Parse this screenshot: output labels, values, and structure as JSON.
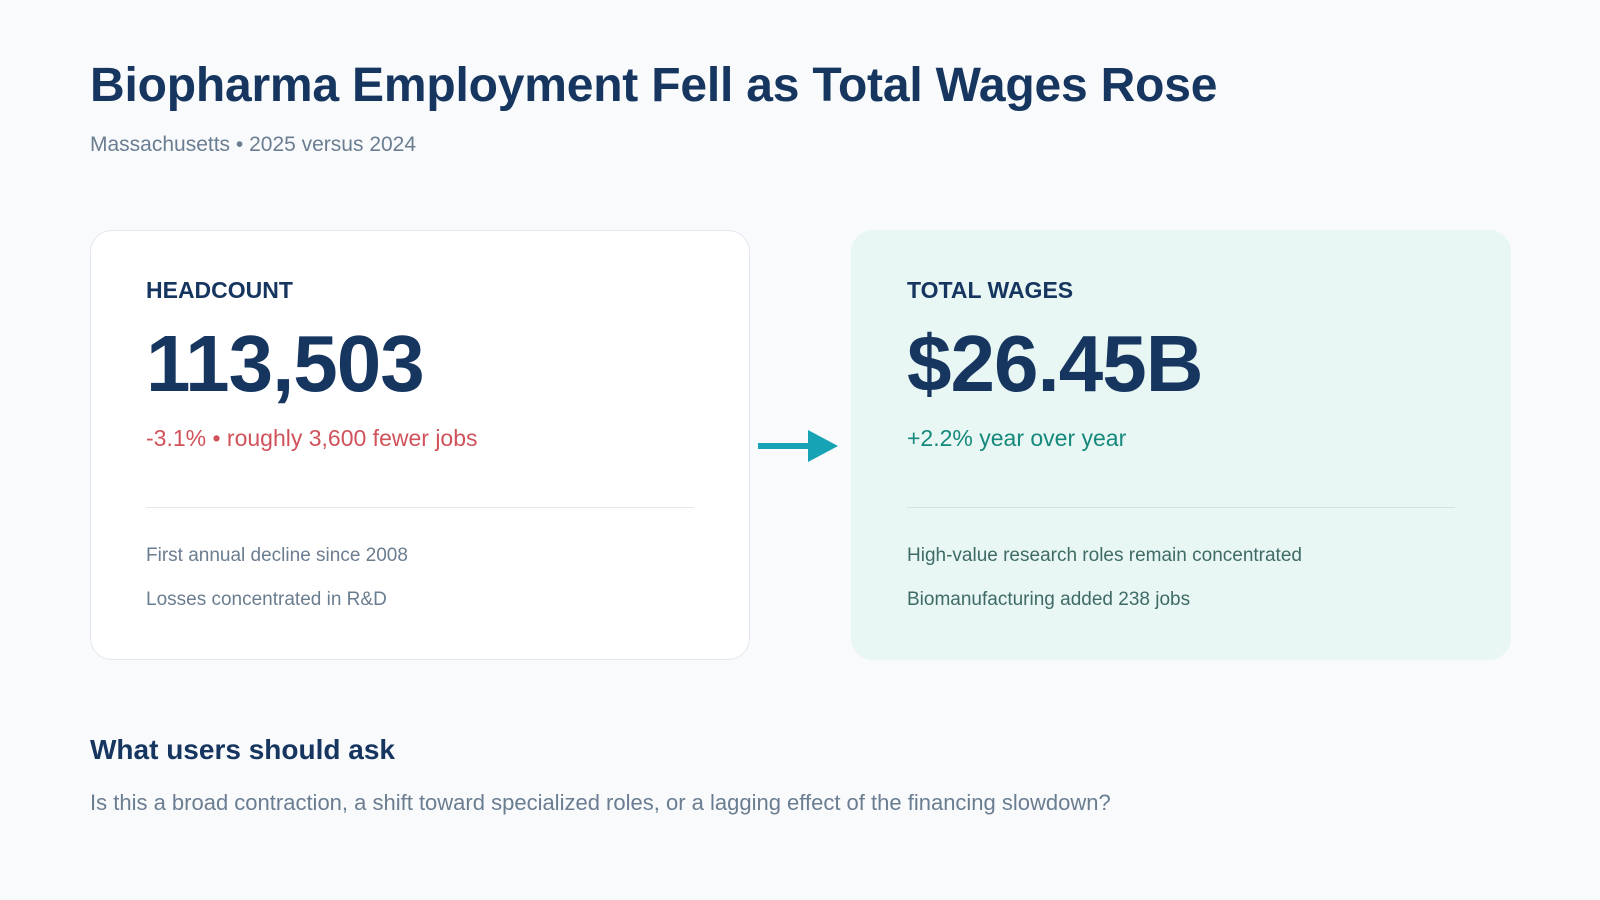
{
  "header": {
    "title": "Biopharma Employment Fell as Total Wages Rose",
    "subtitle": "Massachusetts • 2025 versus 2024"
  },
  "cards": {
    "headcount": {
      "label": "HEADCOUNT",
      "value": "113,503",
      "change": "-3.1% • roughly 3,600 fewer jobs",
      "notes": [
        "First annual decline since 2008",
        "Losses concentrated in R&D"
      ]
    },
    "wages": {
      "label": "TOTAL WAGES",
      "value": "$26.45B",
      "change": "+2.2% year over year",
      "notes": [
        "High-value research roles remain concentrated",
        "Biomanufacturing added 238 jobs"
      ]
    }
  },
  "connector": {
    "icon": "arrow-right-icon",
    "color": "#16a3b5"
  },
  "question": {
    "heading": "What users should ask",
    "body": "Is this a broad contraction, a shift toward specialized roles, or a lagging effect of the financing slowdown?"
  },
  "colors": {
    "primary_text": "#163660",
    "negative": "#d0525a",
    "positive": "#15897b",
    "accent_card_bg": "#e8f6f4",
    "page_bg": "#f8fafc"
  }
}
